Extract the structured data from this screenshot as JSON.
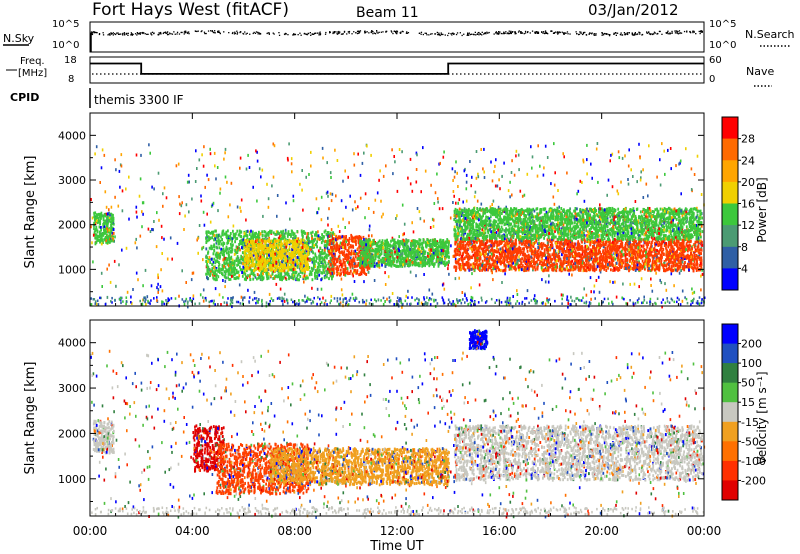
{
  "header": {
    "title": "Fort Hays West (fitACF)",
    "beam": "Beam 11",
    "date": "03/Jan/2012"
  },
  "status_panels": {
    "nsky_label": "N.Sky",
    "nsearch_label": "N.Search",
    "noise_ticks_left": [
      "10^5",
      "10^0"
    ],
    "noise_ticks_right": [
      "10^5",
      "10^0"
    ],
    "freq_label_line1": "Freq.",
    "freq_label_line2": "[MHz]",
    "freq_ticks": [
      "18",
      "8"
    ],
    "nave_label": "Nave",
    "nave_ticks": [
      "60",
      "0"
    ],
    "cpid_label": "CPID",
    "cpid_value": "themis 3300 IF",
    "freq_series": {
      "x": [
        0,
        2,
        2,
        14,
        14,
        24
      ],
      "y": [
        15.5,
        15.5,
        11.5,
        11.5,
        15.5,
        15.5
      ]
    }
  },
  "chart_data": [
    {
      "type": "heatmap",
      "name": "Power",
      "ylabel": "Slant Range [km]",
      "y_ticks": [
        "4000",
        "3000",
        "2000",
        "1000"
      ],
      "ylim": [
        180,
        4500
      ],
      "xlim": [
        0,
        24
      ],
      "colorbar": {
        "label": "Power [dB]",
        "ticks": [
          "28",
          "24",
          "20",
          "16",
          "12",
          "8",
          "4"
        ],
        "colors": [
          "#ff0000",
          "#ff6a00",
          "#ffa500",
          "#f0d000",
          "#3cc83c",
          "#4b9b73",
          "#2f5fa5",
          "#0000ff"
        ]
      },
      "regions": [
        {
          "x0": 0.1,
          "x1": 0.9,
          "y0": 1600,
          "y1": 2300,
          "color": "#3cc83c"
        },
        {
          "x0": 4.5,
          "x1": 9.5,
          "y0": 800,
          "y1": 1900,
          "color": "#3cc83c"
        },
        {
          "x0": 6.0,
          "x1": 8.5,
          "y0": 1000,
          "y1": 1700,
          "color": "#f0d000"
        },
        {
          "x0": 9.3,
          "x1": 10.9,
          "y0": 900,
          "y1": 1800,
          "color": "#ff3c00"
        },
        {
          "x0": 10.5,
          "x1": 14.0,
          "y0": 1100,
          "y1": 1700,
          "color": "#3cc83c"
        },
        {
          "x0": 14.2,
          "x1": 23.9,
          "y0": 1000,
          "y1": 1700,
          "color": "#ff3c00"
        },
        {
          "x0": 14.2,
          "x1": 23.9,
          "y0": 1700,
          "y1": 2400,
          "color": "#3cc83c"
        }
      ]
    },
    {
      "type": "heatmap",
      "name": "Velocity",
      "ylabel": "Slant Range [km]",
      "y_ticks": [
        "4000",
        "3000",
        "2000",
        "1000"
      ],
      "ylim": [
        180,
        4500
      ],
      "xlim": [
        0,
        24
      ],
      "colorbar": {
        "label": "Velocity [m s⁻¹]",
        "ticks": [
          "200",
          "100",
          "50",
          "15",
          "-15",
          "-50",
          "-100",
          "-200"
        ],
        "colors": [
          "#0000ff",
          "#2050c0",
          "#308040",
          "#50c040",
          "#c8c8c0",
          "#f0a020",
          "#ff7000",
          "#ff3000",
          "#e00000"
        ]
      },
      "regions": [
        {
          "x0": 0.1,
          "x1": 0.9,
          "y0": 1600,
          "y1": 2300,
          "color": "#c8c8c0"
        },
        {
          "x0": 4.0,
          "x1": 5.2,
          "y0": 1200,
          "y1": 2200,
          "color": "#e00000"
        },
        {
          "x0": 4.9,
          "x1": 8.5,
          "y0": 700,
          "y1": 1800,
          "color": "#ff4000"
        },
        {
          "x0": 7.0,
          "x1": 14.0,
          "y0": 900,
          "y1": 1700,
          "color": "#f0a020"
        },
        {
          "x0": 14.2,
          "x1": 23.9,
          "y0": 1000,
          "y1": 2200,
          "color": "#c8c8c0"
        },
        {
          "x0": 14.8,
          "x1": 15.5,
          "y0": 3900,
          "y1": 4300,
          "color": "#0000ff"
        }
      ]
    }
  ],
  "x_axis": {
    "ticks": [
      "00:00",
      "04:00",
      "08:00",
      "12:00",
      "16:00",
      "20:00",
      "00:00"
    ],
    "label": "Time UT"
  }
}
